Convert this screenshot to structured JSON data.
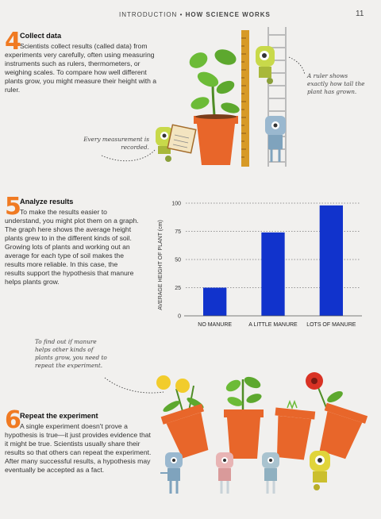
{
  "header": {
    "section": "INTRODUCTION",
    "separator": "•",
    "topic": "HOW SCIENCE WORKS",
    "page_number": "11"
  },
  "steps": [
    {
      "number": "4",
      "title": "Collect data",
      "body": "Scientists collect results (called data) from experiments very carefully, often using measuring instruments such as rulers, thermometers, or weighing scales. To compare how well different plants grow, you might measure their height with a ruler."
    },
    {
      "number": "5",
      "title": "Analyze results",
      "body": "To make the results easier to understand, you might plot them on a graph. The graph here shows the average height plants grew to in the different kinds of soil. Growing lots of plants and working out an average for each type of soil makes the results more reliable. In this case, the results support the hypothesis that manure helps plants grow."
    },
    {
      "number": "6",
      "title": "Repeat the experiment",
      "body": "A single experiment doesn't prove a hypothesis is true—it just provides evidence that it might be true. Scientists usually share their results so that others can repeat the experiment. After many successful results, a hypothesis may eventually be accepted as a fact."
    }
  ],
  "notes": {
    "ruler": "A ruler shows exactly how tall the plant has grown.",
    "measurement": "Every measurement is recorded.",
    "manure": "To find out if manure helps other kinds of plants grow, you need to repeat the experiment."
  },
  "chart_data": {
    "type": "bar",
    "categories": [
      "NO MANURE",
      "A LITTLE MANURE",
      "LOTS OF MANURE"
    ],
    "values": [
      25,
      74,
      98
    ],
    "ylabel": "AVERAGE HEIGHT OF PLANT (cm)",
    "ylim": [
      0,
      100
    ],
    "yticks": [
      0,
      25,
      50,
      75,
      100
    ],
    "grid": "dotted horizontal",
    "bar_color": "#1133cc"
  },
  "colors": {
    "accent": "#f07a22",
    "pot": "#e8662a",
    "leaf": "#5da82e",
    "bar": "#1133cc"
  }
}
